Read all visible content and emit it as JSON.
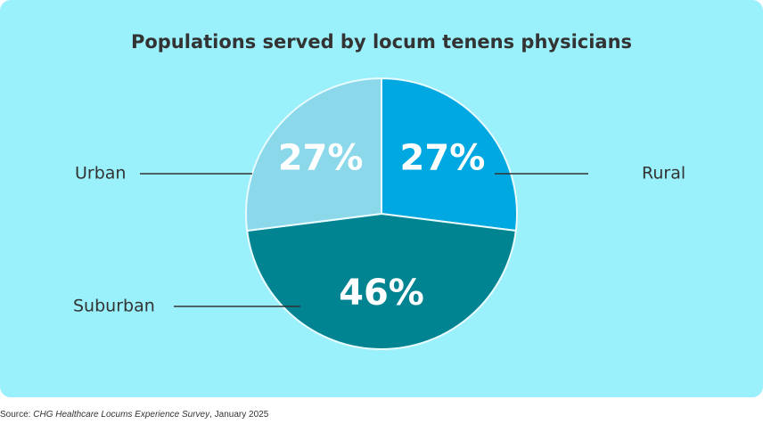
{
  "chart_data": {
    "type": "pie",
    "title": "Populations served by locum tenens physicians",
    "categories": [
      "Rural",
      "Suburban",
      "Urban"
    ],
    "values": [
      27,
      46,
      27
    ],
    "value_labels": [
      "27%",
      "46%",
      "27%"
    ],
    "colors": [
      "#00a8e1",
      "#008491",
      "#8ad8ea"
    ]
  },
  "source": {
    "prefix": "Source: ",
    "title": "CHG Healthcare Locums Experience Survey",
    "suffix": ", January 2025"
  }
}
